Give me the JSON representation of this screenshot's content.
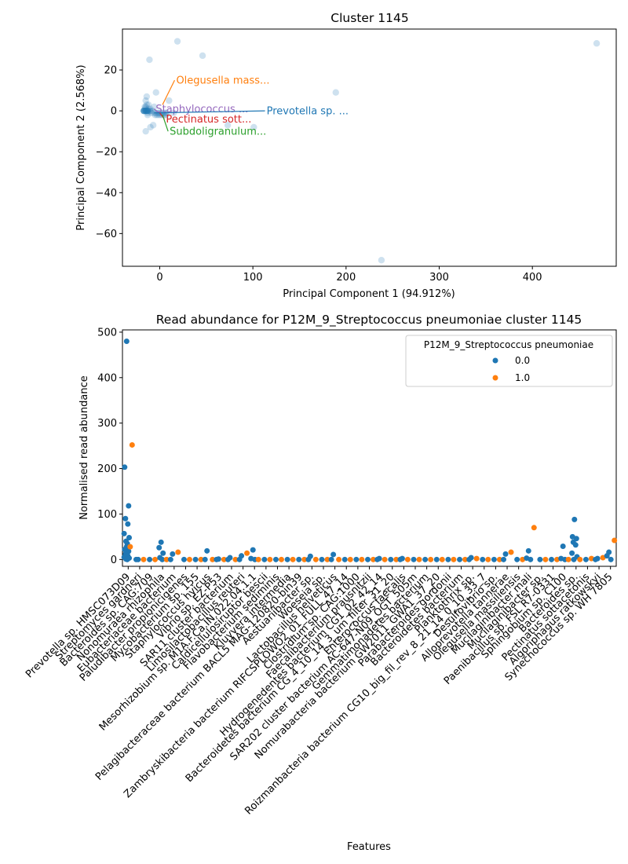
{
  "chart_data": [
    {
      "type": "scatter",
      "title": "Cluster 1145",
      "xlabel": "Principal Component 1 (94.912%)",
      "ylabel": "Principal Component 2 (2.568%)",
      "xlim": [
        -40,
        490
      ],
      "ylim": [
        -76,
        40
      ],
      "xticks": [
        "0",
        "100",
        "200",
        "300",
        "400"
      ],
      "xtick_values": [
        0,
        100,
        200,
        300,
        400
      ],
      "yticks": [
        "20",
        "0",
        "−20",
        "−40",
        "−60"
      ],
      "ytick_values": [
        20,
        0,
        -20,
        -40,
        -60
      ],
      "points": [
        [
          -17,
          0
        ],
        [
          -16,
          1
        ],
        [
          -15,
          2
        ],
        [
          -14,
          3
        ],
        [
          -14,
          0
        ],
        [
          -13,
          -1
        ],
        [
          -12,
          1
        ],
        [
          -11,
          0
        ],
        [
          -10,
          0
        ],
        [
          -9,
          -1
        ],
        [
          -8,
          0
        ],
        [
          -6,
          -1
        ],
        [
          -5,
          -2
        ],
        [
          -4,
          -1
        ],
        [
          -3,
          -2
        ],
        [
          -2,
          -1
        ],
        [
          -1,
          -2
        ],
        [
          0,
          -1
        ],
        [
          1,
          -2
        ],
        [
          2,
          -1
        ],
        [
          3,
          -2
        ],
        [
          4,
          -1
        ],
        [
          5,
          -2
        ],
        [
          6,
          -1
        ],
        [
          7,
          -2
        ],
        [
          8,
          -1
        ],
        [
          -15,
          5
        ],
        [
          -14,
          7
        ],
        [
          -10,
          -8
        ],
        [
          -7,
          -7
        ],
        [
          -4,
          9
        ],
        [
          -15,
          -10
        ],
        [
          -11,
          25
        ],
        [
          10,
          5
        ],
        [
          15,
          -1
        ],
        [
          19,
          34
        ],
        [
          46,
          27
        ],
        [
          73,
          -7
        ],
        [
          101,
          -8
        ],
        [
          189,
          9
        ],
        [
          238,
          -73
        ],
        [
          469,
          33
        ],
        [
          -16,
          2
        ],
        [
          -13,
          -2
        ],
        [
          -12,
          3
        ],
        [
          -10,
          1
        ],
        [
          -6,
          2
        ]
      ],
      "series_color": "#1f77b4",
      "annotations": [
        {
          "text": "Olegusella mass...",
          "color": "#ff7f0e",
          "x": 16,
          "y": 15,
          "px": 3,
          "py": 3
        },
        {
          "text": "Staphylococcus ...",
          "color": "#9467bd",
          "x": -6,
          "y": 1,
          "px": -1,
          "py": -1
        },
        {
          "text": "Prevotella sp. ...",
          "color": "#1f77b4",
          "x": 113,
          "y": 0,
          "px": -6,
          "py": -1
        },
        {
          "text": "Pectinatus sott...",
          "color": "#d62728",
          "x": 5,
          "y": -4,
          "px": 0,
          "py": -1
        },
        {
          "text": "Subdoligranulum...",
          "color": "#2ca02c",
          "x": 9,
          "y": -10,
          "px": 3,
          "py": -2
        }
      ]
    },
    {
      "type": "strip",
      "title": "Read abundance for P12M_9_Streptococcus pneumoniae cluster 1145",
      "xlabel": "Features",
      "ylabel": "Normalised read abundance",
      "ylim": [
        -15,
        505
      ],
      "yticks": [
        "0",
        "100",
        "200",
        "300",
        "400",
        "500"
      ],
      "ytick_values": [
        0,
        100,
        200,
        300,
        400,
        500
      ],
      "legend": {
        "title": "P12M_9_Streptococcus pneumoniae",
        "entries": [
          {
            "label": "0.0",
            "color": "#1f77b4"
          },
          {
            "label": "1.0",
            "color": "#ff7f0e"
          }
        ],
        "placement": "top-right"
      },
      "categories": [
        "Prevotella sp. HMSC073D09",
        "Streptomyces gardneri",
        "Bacteroides sp. CAG:709",
        "Nonomuraea rhizophila",
        "Eubacteriaceae bacterium",
        "Paludibacter propionicigenes",
        "Mycobacterium sp. 155",
        "Staphylococcus hyicus",
        "Vibrio sp. EZ-P53",
        "SAR11 cluster bacterium",
        "Limosilactobacillus reuteri",
        "Mesorhizobium sp. M1A.F.Ca.IN.022.04.1.1",
        "Caldicellulosiruptor bescii",
        "Flavobacterium sediminis",
        "Kluyvera intermedia",
        "Pelagibacteraceae bacterium BACL5 MAG-120820-bin39",
        "Aestuariibacter sp.",
        "Woeseia sp.",
        "Lactobacillus helveticus",
        "Zambryskibacteria bacterium RIFCSPLOWO2_01_FULL_47_14",
        "Clostridium sp. CAG:1000",
        "Faecalibacterium prausnitzii",
        "Hydrogenedentes bacterium CG1_02_42_14",
        "Bacteroidetes bacterium CG_4_10_14_3_um_filter_31_20",
        "Enterococcus faecalis",
        "SAR202 cluster bacterium AC-647-N09_OGT_505m",
        "Gemmatimonadetes bacterium",
        "Nomurabacteria bacterium GW2011_GWA1_37_20",
        "Parabacteroides gordonii",
        "Bacteroidetes bacterium",
        "Planktothrix sp.",
        "Roizmanbacteria bacterium CG10_big_fil_rev_8_21_14_0_10_33_7",
        "Desulfovibrio sp.",
        "Alloprevotella tannerae",
        "Olegusella massiliensis",
        "Mucilaginibacter mali",
        "Mucilaginibacter sp.",
        "Paenibacillus sp. FSL R7-0331",
        "Sphingobium sp. C100",
        "Bacteroides sp.",
        "Pectinatus sottacetonis",
        "Algoriphagus ratkowskyi",
        "Synechococcus sp. WH 7805"
      ],
      "category_points": [
        {
          "blue": [
            480,
            203,
            118,
            90,
            78,
            57,
            48,
            40,
            35,
            28,
            22,
            18,
            12,
            8,
            5,
            3,
            1,
            0
          ],
          "orange": [
            252,
            28
          ]
        },
        {
          "blue": [
            0,
            0
          ],
          "orange": [
            0
          ]
        },
        {
          "blue": [
            0
          ],
          "orange": [
            0
          ]
        },
        {
          "blue": [
            38,
            26,
            14,
            4,
            0
          ],
          "orange": [
            0
          ]
        },
        {
          "blue": [
            12,
            0
          ],
          "orange": [
            16
          ]
        },
        {
          "blue": [
            0
          ],
          "orange": [
            0
          ]
        },
        {
          "blue": [
            0
          ],
          "orange": [
            0
          ]
        },
        {
          "blue": [
            19,
            0
          ],
          "orange": [
            0
          ]
        },
        {
          "blue": [
            1,
            0
          ],
          "orange": [
            0
          ]
        },
        {
          "blue": [
            4,
            0
          ],
          "orange": [
            0
          ]
        },
        {
          "blue": [
            8,
            0
          ],
          "orange": [
            14
          ]
        },
        {
          "blue": [
            21,
            2,
            0
          ],
          "orange": [
            0
          ]
        },
        {
          "blue": [
            0
          ],
          "orange": [
            0
          ]
        },
        {
          "blue": [
            0
          ],
          "orange": [
            0
          ]
        },
        {
          "blue": [
            0
          ],
          "orange": [
            0
          ]
        },
        {
          "blue": [
            0
          ],
          "orange": [
            0
          ]
        },
        {
          "blue": [
            7,
            0
          ],
          "orange": [
            0
          ]
        },
        {
          "blue": [
            0
          ],
          "orange": [
            0
          ]
        },
        {
          "blue": [
            11,
            0
          ],
          "orange": [
            0
          ]
        },
        {
          "blue": [
            0
          ],
          "orange": [
            0
          ]
        },
        {
          "blue": [
            0
          ],
          "orange": [
            0
          ]
        },
        {
          "blue": [
            0
          ],
          "orange": [
            0
          ]
        },
        {
          "blue": [
            2,
            0
          ],
          "orange": [
            0
          ]
        },
        {
          "blue": [
            0
          ],
          "orange": [
            0
          ]
        },
        {
          "blue": [
            2,
            0
          ],
          "orange": [
            0
          ]
        },
        {
          "blue": [
            0
          ],
          "orange": [
            0
          ]
        },
        {
          "blue": [
            0
          ],
          "orange": [
            0
          ]
        },
        {
          "blue": [
            0
          ],
          "orange": [
            0
          ]
        },
        {
          "blue": [
            0
          ],
          "orange": [
            0
          ]
        },
        {
          "blue": [
            0
          ],
          "orange": [
            0
          ]
        },
        {
          "blue": [
            4,
            0
          ],
          "orange": [
            2
          ]
        },
        {
          "blue": [
            0
          ],
          "orange": [
            0
          ]
        },
        {
          "blue": [
            0
          ],
          "orange": [
            0
          ]
        },
        {
          "blue": [
            12,
            0
          ],
          "orange": [
            16
          ]
        },
        {
          "blue": [
            0
          ],
          "orange": [
            0
          ]
        },
        {
          "blue": [
            19,
            3,
            0
          ],
          "orange": [
            70
          ]
        },
        {
          "blue": [
            0
          ],
          "orange": [
            0
          ]
        },
        {
          "blue": [
            0
          ],
          "orange": [
            0
          ]
        },
        {
          "blue": [
            29,
            2,
            0
          ],
          "orange": [
            0
          ]
        },
        {
          "blue": [
            88,
            50,
            46,
            38,
            32,
            14,
            6,
            0
          ],
          "orange": [
            0
          ]
        },
        {
          "blue": [
            0
          ],
          "orange": [
            2
          ]
        },
        {
          "blue": [
            2,
            0
          ],
          "orange": [
            4
          ]
        },
        {
          "blue": [
            16,
            8,
            0
          ],
          "orange": [
            42
          ]
        }
      ]
    }
  ]
}
